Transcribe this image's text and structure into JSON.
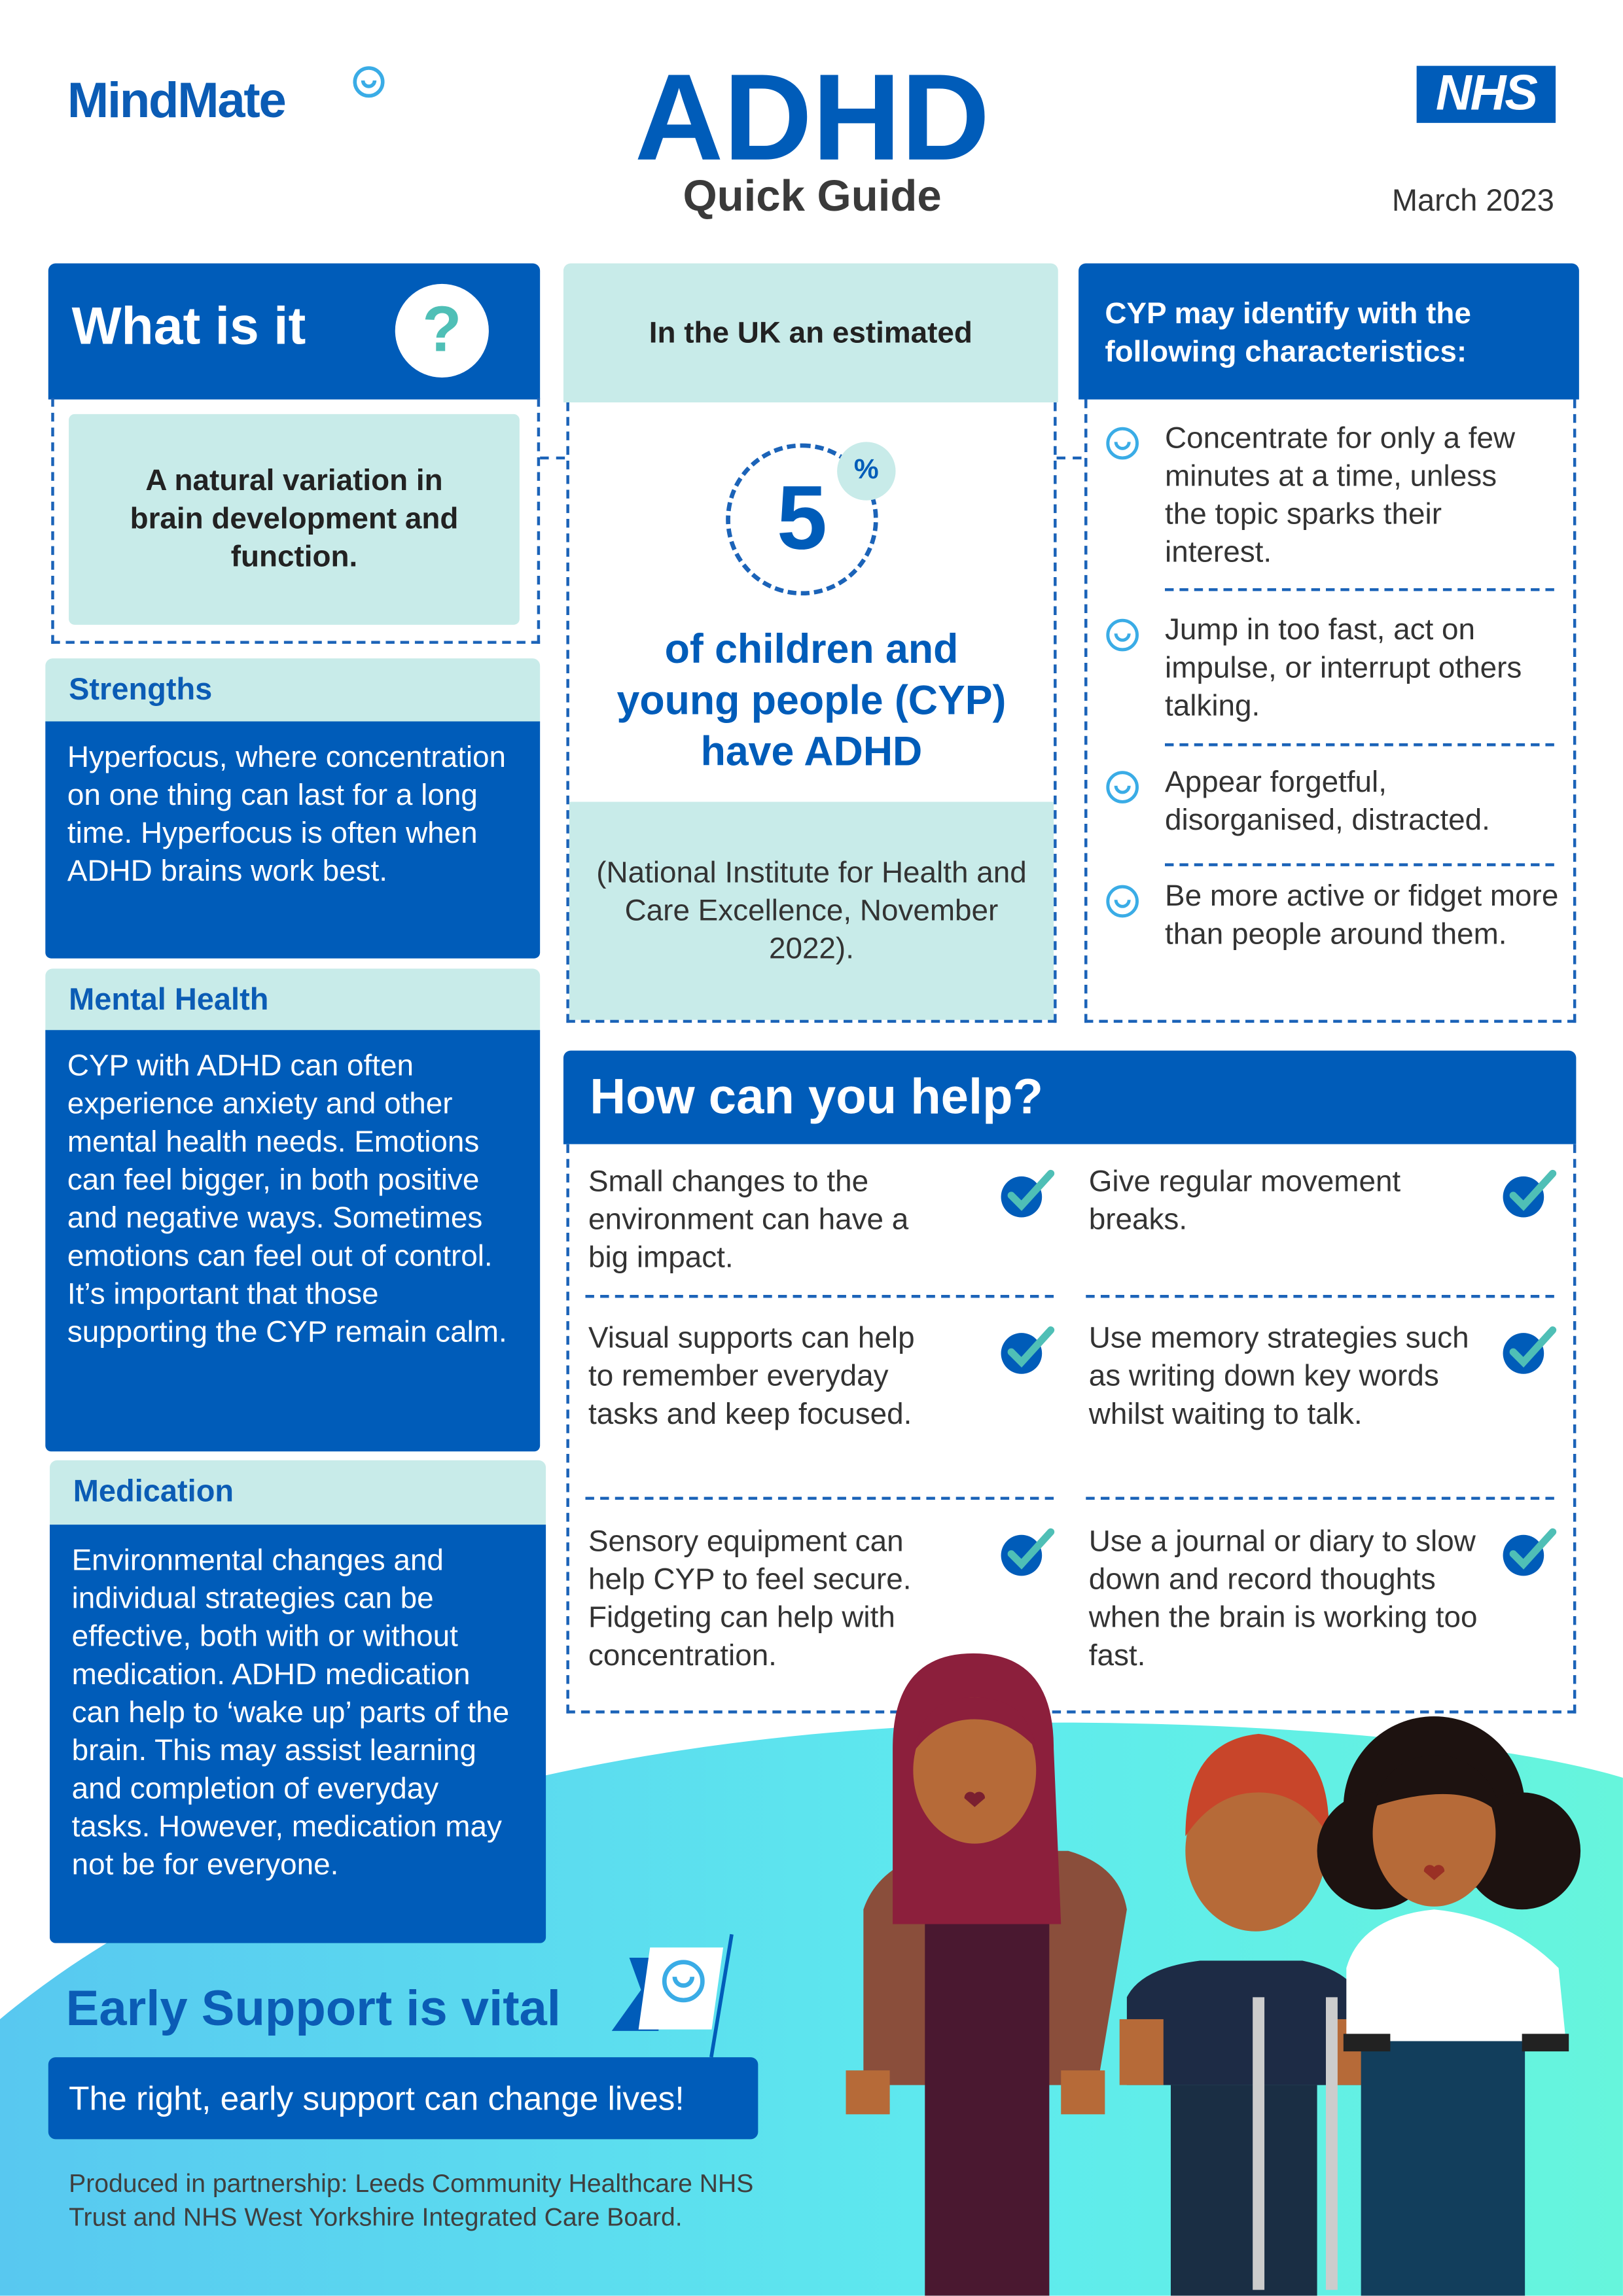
{
  "header": {
    "logo": "MindMate",
    "title": "ADHD",
    "subtitle": "Quick Guide",
    "nhs_logo": "NHS",
    "date": "March 2023"
  },
  "what_is_it": {
    "title": "What is it",
    "icon": "question-mark-icon",
    "icon_text": "?",
    "body": "A natural variation in brain development and function."
  },
  "strengths": {
    "title": "Strengths",
    "body": "Hyperfocus, where concentration on one thing can last for a long time. Hyperfocus is often when ADHD brains work best."
  },
  "mental_health": {
    "title": "Mental Health",
    "body": "CYP with ADHD can often experience anxiety and other mental health needs. Emotions can feel bigger, in both positive and negative ways. Sometimes emotions can feel out of control. It’s important that those supporting the CYP remain calm."
  },
  "medication": {
    "title": "Medication",
    "body": "Environmental changes and individual strategies can be effective, both with or without medication. ADHD medication can help to ‘wake up’ parts of the brain. This may assist learning and completion of everyday tasks. However, medication may not be for everyone."
  },
  "stat": {
    "intro": "In the UK an estimated",
    "value": "5",
    "unit": "%",
    "line1": "of children and",
    "line2": "young people (CYP)",
    "line3": "have ADHD",
    "source": "(National Institute for Health and Care Excellence, November 2022)."
  },
  "characteristics": {
    "title": "CYP may identify with the following characteristics:",
    "icon": "smiley-icon",
    "items": [
      "Concentrate for only a few minutes at a time, unless the topic sparks their interest.",
      "Jump in too fast, act on impulse, or interrupt others talking.",
      "Appear forgetful, disorganised, distracted.",
      "Be more active or fidget more than people around them."
    ]
  },
  "help": {
    "title": "How can you help?",
    "icon": "checkmark-icon",
    "items": [
      "Small changes to the environment can have a big impact.",
      "Give regular movement breaks.",
      "Visual supports can help to remember everyday tasks and keep focused.",
      "Use memory strategies such as writing down key words whilst waiting to talk.",
      "Sensory equipment can help CYP to feel secure. Fidgeting can help with concentration.",
      "Use a journal or diary to slow down and record thoughts when the brain is working too fast."
    ]
  },
  "early": {
    "title": "Early Support is vital",
    "banner": "The right, early support can change lives!",
    "footer": "Produced in partnership: Leeds Community Healthcare NHS Trust and NHS West Yorkshire Integrated Care Board."
  },
  "colors": {
    "nhs_blue": "#005cb9",
    "light_teal": "#c8ebe9",
    "accent_teal": "#4fbfb6",
    "bg_cyan": "#5ee9e9"
  }
}
